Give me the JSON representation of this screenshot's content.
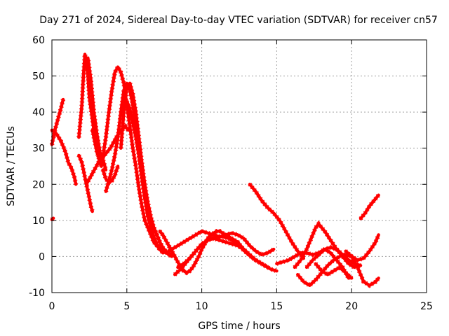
{
  "chart_data": {
    "type": "scatter",
    "title": "Day 271 of 2024, Sidereal Day-to-day VTEC variation (SDTVAR) for receiver cn57",
    "xlabel": "GPS time / hours",
    "ylabel": "SDTVAR / TECUs",
    "xlim": [
      0,
      25
    ],
    "ylim": [
      -10,
      60
    ],
    "xticks": [
      0,
      5,
      10,
      15,
      20,
      25
    ],
    "yticks": [
      -10,
      0,
      10,
      20,
      30,
      40,
      50,
      60
    ],
    "grid": true,
    "marker": "+",
    "color": "#ff0000",
    "series": [
      {
        "name": "track-1",
        "x": [
          0.0,
          0.1
        ],
        "y": [
          10.2,
          10.6
        ]
      },
      {
        "name": "track-2",
        "x": [
          0.0,
          0.2,
          0.4,
          0.6,
          0.75
        ],
        "y": [
          31,
          35,
          38,
          41,
          43.5
        ]
      },
      {
        "name": "track-3",
        "x": [
          0.0,
          0.3,
          0.6,
          0.9,
          1.1,
          1.3,
          1.5,
          1.6
        ],
        "y": [
          35,
          34,
          32,
          29,
          26,
          24.5,
          22,
          20
        ]
      },
      {
        "name": "track-4",
        "x": [
          1.8,
          2.0,
          2.2,
          2.4,
          2.6,
          2.7
        ],
        "y": [
          28,
          26,
          22,
          18,
          14,
          12.5
        ]
      },
      {
        "name": "track-5",
        "x": [
          1.8,
          2.0,
          2.1,
          2.2,
          2.3,
          2.4,
          2.5,
          2.7,
          2.9,
          3.1,
          3.3
        ],
        "y": [
          33,
          42,
          50,
          56,
          54,
          50,
          44,
          38,
          32,
          28,
          25
        ]
      },
      {
        "name": "track-6",
        "x": [
          2.2,
          2.4,
          2.6,
          2.8,
          3.0,
          3.2,
          3.4,
          3.6
        ],
        "y": [
          54,
          55,
          49,
          40,
          34,
          29,
          27,
          24
        ]
      },
      {
        "name": "track-7",
        "x": [
          2.3,
          2.7,
          3.1,
          3.5,
          3.9,
          4.3,
          4.6,
          4.9,
          5.1
        ],
        "y": [
          20,
          23,
          26,
          28,
          30,
          33,
          35,
          36,
          35
        ]
      },
      {
        "name": "track-8",
        "x": [
          2.7,
          3.0,
          3.3,
          3.6,
          3.8,
          4.0,
          4.2,
          4.4,
          4.6,
          4.8,
          5.0,
          5.2,
          5.4,
          5.6,
          5.8,
          6.0,
          6.2,
          6.4,
          6.6,
          6.8,
          7.0,
          7.2,
          7.4,
          7.6,
          7.8,
          8.0
        ],
        "y": [
          35,
          29,
          25,
          33,
          40,
          46,
          51,
          52.5,
          51,
          48,
          42,
          36,
          30,
          25,
          19,
          14,
          10,
          8,
          6,
          4,
          3,
          2,
          1.5,
          1,
          0.8,
          0.6
        ]
      },
      {
        "name": "track-9",
        "x": [
          3.4,
          3.6,
          3.8,
          4.0,
          4.2,
          4.4
        ],
        "y": [
          24,
          21.5,
          20.5,
          21,
          22.5,
          25
        ]
      },
      {
        "name": "track-10",
        "x": [
          3.6,
          3.8,
          4.0,
          4.2,
          4.4,
          4.6,
          4.8,
          5.0,
          5.2,
          5.4,
          5.6,
          5.8,
          6.0,
          6.2,
          6.4,
          6.6,
          6.8,
          7.0,
          7.2,
          7.4
        ],
        "y": [
          18,
          21,
          24,
          28,
          33,
          40,
          46,
          48,
          46,
          42,
          36,
          29,
          22,
          16,
          11,
          8,
          5.5,
          3.5,
          2,
          1
        ]
      },
      {
        "name": "track-11",
        "x": [
          4.6,
          4.8,
          5.0,
          5.2,
          5.4,
          5.6,
          5.8,
          6.0,
          6.2,
          6.4,
          6.6,
          6.8,
          7.0,
          7.2,
          7.4,
          7.6,
          7.8,
          8.0
        ],
        "y": [
          30,
          40,
          47,
          48,
          45,
          40,
          33,
          26,
          20,
          15,
          11,
          8,
          6,
          4,
          2.5,
          1.5,
          0.5,
          0
        ]
      },
      {
        "name": "track-12",
        "x": [
          5.0,
          5.2,
          5.4,
          5.6,
          5.8,
          6.0,
          6.2,
          6.4,
          6.6,
          6.8,
          7.0,
          7.2,
          7.4
        ],
        "y": [
          43,
          41,
          37,
          33,
          28,
          22,
          17,
          13,
          10,
          8,
          6,
          4,
          2
        ]
      },
      {
        "name": "track-13",
        "x": [
          7.2,
          7.4,
          7.6,
          7.8,
          8.0,
          8.2,
          8.4,
          8.6,
          8.8,
          9.0,
          9.2,
          9.4,
          9.6,
          9.8,
          10.0,
          10.2,
          10.4,
          10.6,
          10.8,
          11.0,
          11.2,
          11.4,
          11.6,
          11.8,
          12.0,
          12.2,
          12.4,
          12.6,
          12.8,
          13.0
        ],
        "y": [
          7,
          6,
          4.5,
          3,
          1.5,
          0,
          -1.5,
          -3,
          -4,
          -4.5,
          -4,
          -3,
          -1.5,
          0,
          2,
          3.5,
          5,
          6,
          6.5,
          7,
          7,
          6.5,
          6,
          5.5,
          5,
          4.5,
          4,
          3,
          2,
          1
        ]
      },
      {
        "name": "track-14",
        "x": [
          8.2,
          8.6,
          9.0,
          9.4,
          9.8,
          10.2,
          10.6,
          11.0,
          11.4,
          11.8,
          12.2,
          12.6,
          13.0,
          13.4,
          13.8,
          14.2,
          14.6,
          15.0
        ],
        "y": [
          -5,
          -3.5,
          -1.5,
          0.5,
          2.5,
          4,
          5,
          5.5,
          5.5,
          5,
          4,
          2.5,
          1,
          -0.5,
          -1.5,
          -2.5,
          -3.5,
          -4
        ]
      },
      {
        "name": "track-15",
        "x": [
          7.6,
          8.0,
          8.4,
          8.8,
          9.2,
          9.6,
          10.0,
          10.4,
          10.8,
          11.2,
          11.6,
          12.0,
          12.4,
          12.8,
          13.2,
          13.6,
          14.0,
          14.4,
          14.8
        ],
        "y": [
          1,
          2,
          3,
          4,
          5,
          6,
          7,
          6.5,
          6,
          5.5,
          6,
          6.5,
          6,
          5,
          3,
          1.5,
          0.5,
          1,
          2
        ]
      },
      {
        "name": "track-16",
        "x": [
          8.4,
          8.8,
          9.2,
          9.6,
          10.0,
          10.4,
          10.8,
          11.2,
          11.6,
          12.0,
          12.4,
          12.8,
          13.2,
          13.6,
          14.0,
          14.4
        ],
        "y": [
          -3,
          -2,
          -0.5,
          1.5,
          3.5,
          4.5,
          5,
          4.5,
          4,
          3.5,
          3,
          2,
          0.5,
          -1,
          -2,
          -3
        ]
      },
      {
        "name": "track-17",
        "x": [
          13.2,
          13.6,
          14.0,
          14.4,
          14.8,
          15.2,
          15.6,
          16.0,
          16.4,
          16.8
        ],
        "y": [
          20,
          18,
          15.5,
          13.5,
          12,
          10,
          7,
          4,
          1.5,
          -0.5
        ]
      },
      {
        "name": "track-18",
        "x": [
          15.0,
          15.4,
          15.8,
          16.2,
          16.6,
          17.0,
          17.4,
          17.8,
          18.2,
          18.6,
          19.0,
          19.4,
          19.8
        ],
        "y": [
          -2,
          -1.5,
          -1,
          0,
          1,
          1,
          0.5,
          1,
          2,
          1,
          -1,
          -3,
          -6
        ]
      },
      {
        "name": "track-19",
        "x": [
          16.2,
          16.6,
          17.0,
          17.4,
          17.6,
          17.8,
          18.2,
          18.6,
          19.0,
          19.4,
          19.8,
          20.2
        ],
        "y": [
          -3,
          -1,
          2,
          6,
          8,
          9,
          7,
          4.5,
          2,
          0,
          -2,
          -3
        ]
      },
      {
        "name": "track-20",
        "x": [
          16.4,
          16.8,
          17.2,
          17.6,
          18.0,
          18.4,
          18.8,
          19.2,
          19.6,
          20.0,
          20.4,
          20.8,
          21.2,
          21.6,
          21.8
        ],
        "y": [
          -5,
          -7,
          -8,
          -6.5,
          -4.5,
          -2.5,
          -1,
          0,
          0.5,
          0,
          -1,
          -0.5,
          1.5,
          4,
          6
        ]
      },
      {
        "name": "track-21",
        "x": [
          17.0,
          17.4,
          17.8,
          18.2,
          18.6,
          19.0,
          19.4,
          19.8,
          20.2,
          20.6
        ],
        "y": [
          -3,
          -1,
          0.5,
          2,
          2.5,
          2,
          0.5,
          -1,
          -2,
          -2.5
        ]
      },
      {
        "name": "track-22",
        "x": [
          17.6,
          18.0,
          18.4,
          18.8,
          19.2,
          19.6,
          20.0
        ],
        "y": [
          -2,
          -4,
          -5,
          -4,
          -3,
          -4.5,
          -6
        ]
      },
      {
        "name": "track-23",
        "x": [
          19.6,
          20.0,
          20.4,
          20.8,
          21.2,
          21.6,
          21.8
        ],
        "y": [
          1.5,
          0,
          -3,
          -7,
          -8,
          -7,
          -6
        ]
      },
      {
        "name": "track-24",
        "x": [
          20.6,
          20.9,
          21.2,
          21.5,
          21.8
        ],
        "y": [
          10.5,
          12,
          14,
          15.5,
          17
        ]
      }
    ]
  }
}
